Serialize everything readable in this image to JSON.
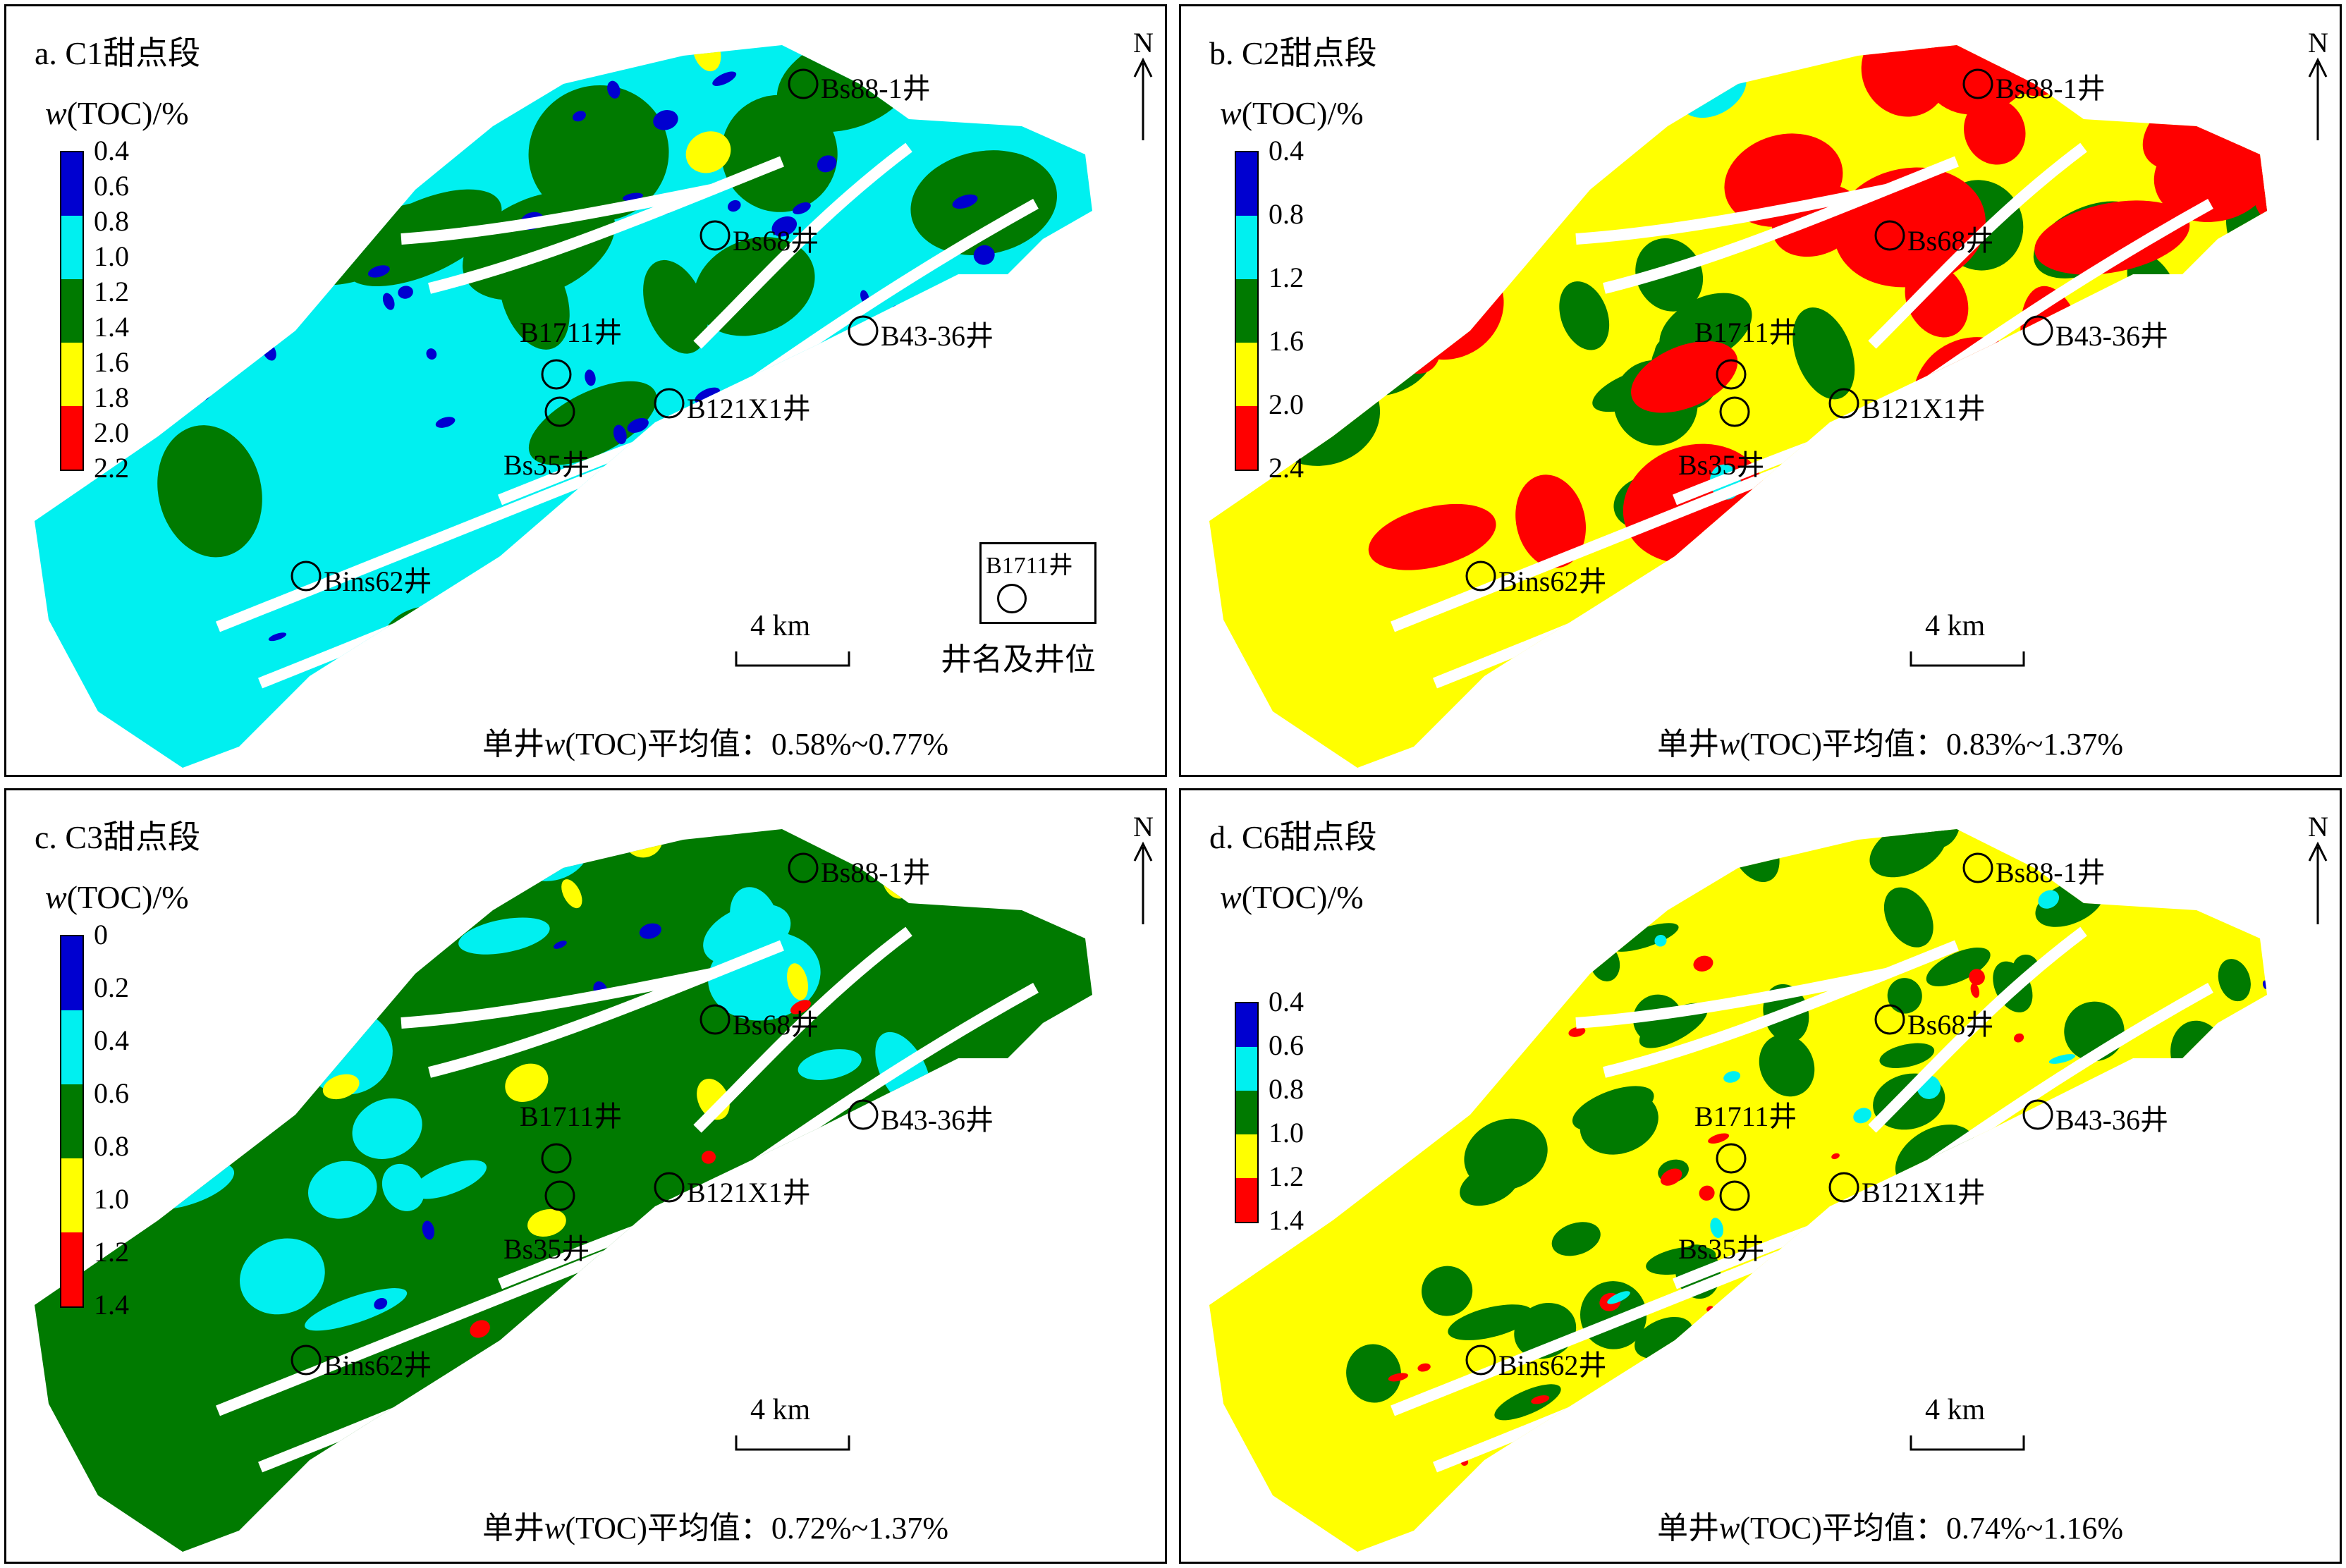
{
  "legend_title_var": "w",
  "legend_title_rest": "(TOC)/%",
  "north": "N",
  "scale": "4 km",
  "mean_prefix": "单井",
  "mean_var": "w",
  "mean_mid": "(TOC)平均值：",
  "key": {
    "well": "B1711井",
    "caption": "井名及井位"
  },
  "colors": {
    "blue": "#0000d0",
    "cyan": "#00f0f0",
    "green": "#007a00",
    "yellow": "#ffff00",
    "red": "#ff0000",
    "white": "#ffffff"
  },
  "panels": [
    {
      "title": "a. C1甜点段",
      "mean_range": "0.58%~0.77%",
      "dominant": "cyan",
      "legend_ticks": [
        "0.4",
        "0.6",
        "0.8",
        "1.0",
        "1.2",
        "1.4",
        "1.6",
        "1.8",
        "2.0",
        "2.2"
      ],
      "legend_colors": [
        "blue",
        "cyan",
        "green",
        "yellow",
        "red"
      ],
      "wells": [
        "Bs88-1井",
        "Bs68井",
        "B1711井",
        "B43-36井",
        "B121X1井",
        "Bs35井",
        "Bins62井"
      ]
    },
    {
      "title": "b. C2甜点段",
      "mean_range": "0.83%~1.37%",
      "dominant": "yellow",
      "legend_ticks": [
        "0.4",
        "0.8",
        "1.2",
        "1.6",
        "2.0",
        "2.4"
      ],
      "legend_colors": [
        "blue",
        "cyan",
        "green",
        "yellow",
        "red"
      ],
      "wells": [
        "Bs88-1井",
        "Bs68井",
        "B1711井",
        "B43-36井",
        "B121X1井",
        "Bs35井",
        "Bins62井"
      ]
    },
    {
      "title": "c. C3甜点段",
      "mean_range": "0.72%~1.37%",
      "dominant": "green",
      "legend_ticks": [
        "0",
        "0.2",
        "0.4",
        "0.6",
        "0.8",
        "1.0",
        "1.2",
        "1.4"
      ],
      "legend_colors": [
        "blue",
        "cyan",
        "green",
        "yellow",
        "red"
      ],
      "wells": [
        "Bs88-1井",
        "Bs68井",
        "B1711井",
        "B43-36井",
        "B121X1井",
        "Bs35井",
        "Bins62井"
      ]
    },
    {
      "title": "d. C6甜点段",
      "mean_range": "0.74%~1.16%",
      "dominant": "yellow",
      "legend_ticks": [
        "0.4",
        "0.6",
        "0.8",
        "1.0",
        "1.2",
        "1.4"
      ],
      "legend_colors": [
        "blue",
        "cyan",
        "green",
        "yellow",
        "red"
      ],
      "wells": [
        "Bs88-1井",
        "Bs68井",
        "B1711井",
        "B43-36井",
        "B121X1井",
        "Bs35井",
        "Bins62井"
      ]
    }
  ]
}
